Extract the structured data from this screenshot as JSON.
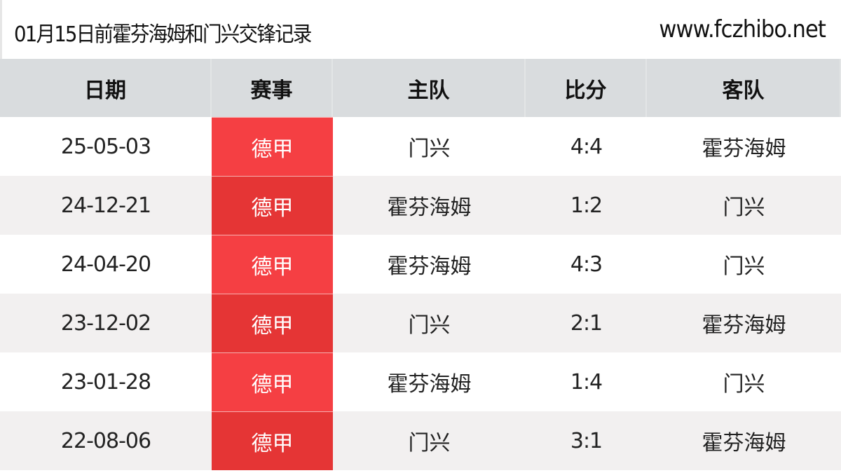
{
  "header": {
    "title": "01月15日前霍芬海姆和门兴交锋记录",
    "site": "www.fczhibo.net"
  },
  "columns": [
    "日期",
    "赛事",
    "主队",
    "比分",
    "客队"
  ],
  "colors": {
    "league_bg": "#f53f43",
    "league_bg_alt": "#e53535",
    "header_bg": "#d9dcde",
    "row_alt": "#f2f0f0"
  },
  "rows": [
    {
      "date": "25-05-03",
      "league": "德甲",
      "home": "门兴",
      "score": "4:4",
      "away": "霍芬海姆"
    },
    {
      "date": "24-12-21",
      "league": "德甲",
      "home": "霍芬海姆",
      "score": "1:2",
      "away": "门兴"
    },
    {
      "date": "24-04-20",
      "league": "德甲",
      "home": "霍芬海姆",
      "score": "4:3",
      "away": "门兴"
    },
    {
      "date": "23-12-02",
      "league": "德甲",
      "home": "门兴",
      "score": "2:1",
      "away": "霍芬海姆"
    },
    {
      "date": "23-01-28",
      "league": "德甲",
      "home": "霍芬海姆",
      "score": "1:4",
      "away": "门兴"
    },
    {
      "date": "22-08-06",
      "league": "德甲",
      "home": "门兴",
      "score": "3:1",
      "away": "霍芬海姆"
    }
  ]
}
